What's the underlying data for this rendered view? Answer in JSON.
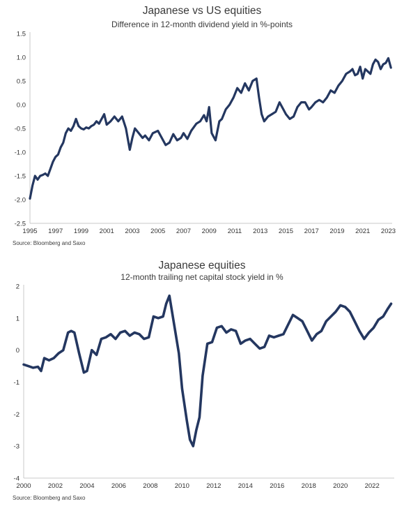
{
  "colors": {
    "line": "#243760",
    "axis": "#c8c8c8",
    "text": "#333333"
  },
  "chart_data": [
    {
      "type": "line",
      "title": "Japanese vs US equities",
      "subtitle": "Difference in 12-month dividend yield in %-points",
      "source": "Source: Bloomberg and Saxo",
      "xlim": [
        1995,
        2023.3
      ],
      "ylim": [
        -2.5,
        1.5
      ],
      "x_ticks": [
        "1995",
        "1997",
        "1999",
        "2001",
        "2003",
        "2005",
        "2007",
        "2009",
        "2011",
        "2013",
        "2015",
        "2017",
        "2019",
        "2021",
        "2023"
      ],
      "y_ticks": [
        "1.5",
        "1.0",
        "0.5",
        "0.0",
        "-0.5",
        "-1.0",
        "-1.5",
        "-2.0",
        "-2.5"
      ],
      "grid": false,
      "series": [
        {
          "x": [
            1995.0,
            1995.2,
            1995.4,
            1995.6,
            1995.8,
            1996.0,
            1996.2,
            1996.4,
            1996.6,
            1996.8,
            1997.0,
            1997.2,
            1997.4,
            1997.6,
            1997.8,
            1998.0,
            1998.2,
            1998.4,
            1998.6,
            1998.8,
            1999.0,
            1999.2,
            1999.4,
            1999.6,
            1999.8,
            2000.0,
            2000.2,
            2000.4,
            2000.6,
            2000.8,
            2001.0,
            2001.3,
            2001.6,
            2001.9,
            2002.2,
            2002.5,
            2002.8,
            2003.0,
            2003.2,
            2003.5,
            2003.8,
            2004.0,
            2004.3,
            2004.6,
            2005.0,
            2005.3,
            2005.6,
            2005.9,
            2006.2,
            2006.5,
            2006.8,
            2007.0,
            2007.3,
            2007.6,
            2008.0,
            2008.3,
            2008.6,
            2008.8,
            2009.0,
            2009.2,
            2009.5,
            2009.8,
            2010.0,
            2010.3,
            2010.6,
            2010.9,
            2011.2,
            2011.5,
            2011.8,
            2012.1,
            2012.4,
            2012.7,
            2012.9,
            2013.1,
            2013.3,
            2013.6,
            2013.9,
            2014.2,
            2014.5,
            2014.8,
            2015.0,
            2015.3,
            2015.6,
            2015.9,
            2016.2,
            2016.5,
            2016.8,
            2017.0,
            2017.3,
            2017.6,
            2017.9,
            2018.2,
            2018.5,
            2018.8,
            2019.1,
            2019.4,
            2019.7,
            2020.0,
            2020.2,
            2020.4,
            2020.6,
            2020.8,
            2021.0,
            2021.2,
            2021.4,
            2021.6,
            2021.8,
            2022.0,
            2022.2,
            2022.4,
            2022.6,
            2022.8,
            2023.0,
            2023.2
          ],
          "y": [
            -1.98,
            -1.7,
            -1.5,
            -1.58,
            -1.5,
            -1.48,
            -1.45,
            -1.5,
            -1.35,
            -1.2,
            -1.1,
            -1.05,
            -0.9,
            -0.8,
            -0.6,
            -0.5,
            -0.55,
            -0.45,
            -0.3,
            -0.45,
            -0.5,
            -0.52,
            -0.48,
            -0.5,
            -0.45,
            -0.42,
            -0.35,
            -0.4,
            -0.3,
            -0.2,
            -0.42,
            -0.35,
            -0.25,
            -0.35,
            -0.25,
            -0.5,
            -0.95,
            -0.7,
            -0.5,
            -0.6,
            -0.7,
            -0.65,
            -0.75,
            -0.6,
            -0.55,
            -0.7,
            -0.85,
            -0.8,
            -0.62,
            -0.75,
            -0.7,
            -0.6,
            -0.72,
            -0.55,
            -0.4,
            -0.35,
            -0.22,
            -0.35,
            -0.05,
            -0.6,
            -0.75,
            -0.35,
            -0.3,
            -0.1,
            0.0,
            0.15,
            0.35,
            0.25,
            0.45,
            0.3,
            0.5,
            0.55,
            0.15,
            -0.2,
            -0.35,
            -0.25,
            -0.2,
            -0.15,
            0.05,
            -0.1,
            -0.2,
            -0.3,
            -0.25,
            -0.05,
            0.05,
            0.05,
            -0.1,
            -0.05,
            0.05,
            0.1,
            0.05,
            0.15,
            0.3,
            0.25,
            0.4,
            0.5,
            0.65,
            0.7,
            0.75,
            0.62,
            0.65,
            0.8,
            0.55,
            0.75,
            0.7,
            0.65,
            0.85,
            0.95,
            0.9,
            0.75,
            0.85,
            0.88,
            0.98,
            0.78
          ]
        }
      ]
    },
    {
      "type": "line",
      "title": "Japanese equities",
      "subtitle": "12-month trailing net capital stock yield in %",
      "source": "Source: Bloomberg and Saxo",
      "xlim": [
        2000,
        2023.4
      ],
      "ylim": [
        -4,
        2
      ],
      "x_ticks": [
        "2000",
        "2002",
        "2004",
        "2006",
        "2008",
        "2010",
        "2012",
        "2014",
        "2016",
        "2018",
        "2020",
        "2022"
      ],
      "y_ticks": [
        "2",
        "1",
        "0",
        "-1",
        "-2",
        "-3",
        "-4"
      ],
      "grid": false,
      "series": [
        {
          "x": [
            2000.0,
            2000.3,
            2000.6,
            2000.9,
            2001.1,
            2001.3,
            2001.6,
            2001.9,
            2002.2,
            2002.5,
            2002.8,
            2003.0,
            2003.2,
            2003.5,
            2003.8,
            2004.0,
            2004.3,
            2004.6,
            2004.9,
            2005.2,
            2005.5,
            2005.8,
            2006.1,
            2006.4,
            2006.7,
            2007.0,
            2007.3,
            2007.6,
            2007.9,
            2008.2,
            2008.5,
            2008.8,
            2009.0,
            2009.2,
            2009.5,
            2009.8,
            2010.0,
            2010.3,
            2010.5,
            2010.7,
            2010.9,
            2011.1,
            2011.3,
            2011.6,
            2011.9,
            2012.2,
            2012.5,
            2012.8,
            2013.1,
            2013.4,
            2013.7,
            2014.0,
            2014.3,
            2014.6,
            2014.9,
            2015.2,
            2015.5,
            2015.8,
            2016.1,
            2016.4,
            2016.7,
            2017.0,
            2017.3,
            2017.6,
            2017.9,
            2018.2,
            2018.5,
            2018.8,
            2019.1,
            2019.4,
            2019.7,
            2020.0,
            2020.3,
            2020.6,
            2020.9,
            2021.2,
            2021.5,
            2021.8,
            2022.1,
            2022.4,
            2022.7,
            2023.0,
            2023.2
          ],
          "y": [
            -0.45,
            -0.5,
            -0.55,
            -0.52,
            -0.65,
            -0.25,
            -0.32,
            -0.25,
            -0.1,
            0.0,
            0.55,
            0.6,
            0.55,
            -0.1,
            -0.7,
            -0.65,
            0.0,
            -0.15,
            0.35,
            0.4,
            0.5,
            0.35,
            0.55,
            0.6,
            0.45,
            0.55,
            0.5,
            0.35,
            0.4,
            1.05,
            1.0,
            1.05,
            1.45,
            1.7,
            0.8,
            -0.1,
            -1.2,
            -2.2,
            -2.8,
            -3.0,
            -2.5,
            -2.1,
            -0.8,
            0.2,
            0.25,
            0.7,
            0.75,
            0.55,
            0.65,
            0.6,
            0.2,
            0.3,
            0.35,
            0.2,
            0.05,
            0.1,
            0.45,
            0.4,
            0.45,
            0.5,
            0.8,
            1.1,
            1.0,
            0.9,
            0.6,
            0.3,
            0.5,
            0.6,
            0.9,
            1.05,
            1.2,
            1.4,
            1.35,
            1.2,
            0.9,
            0.6,
            0.35,
            0.55,
            0.7,
            0.95,
            1.05,
            1.3,
            1.45
          ]
        }
      ]
    }
  ]
}
